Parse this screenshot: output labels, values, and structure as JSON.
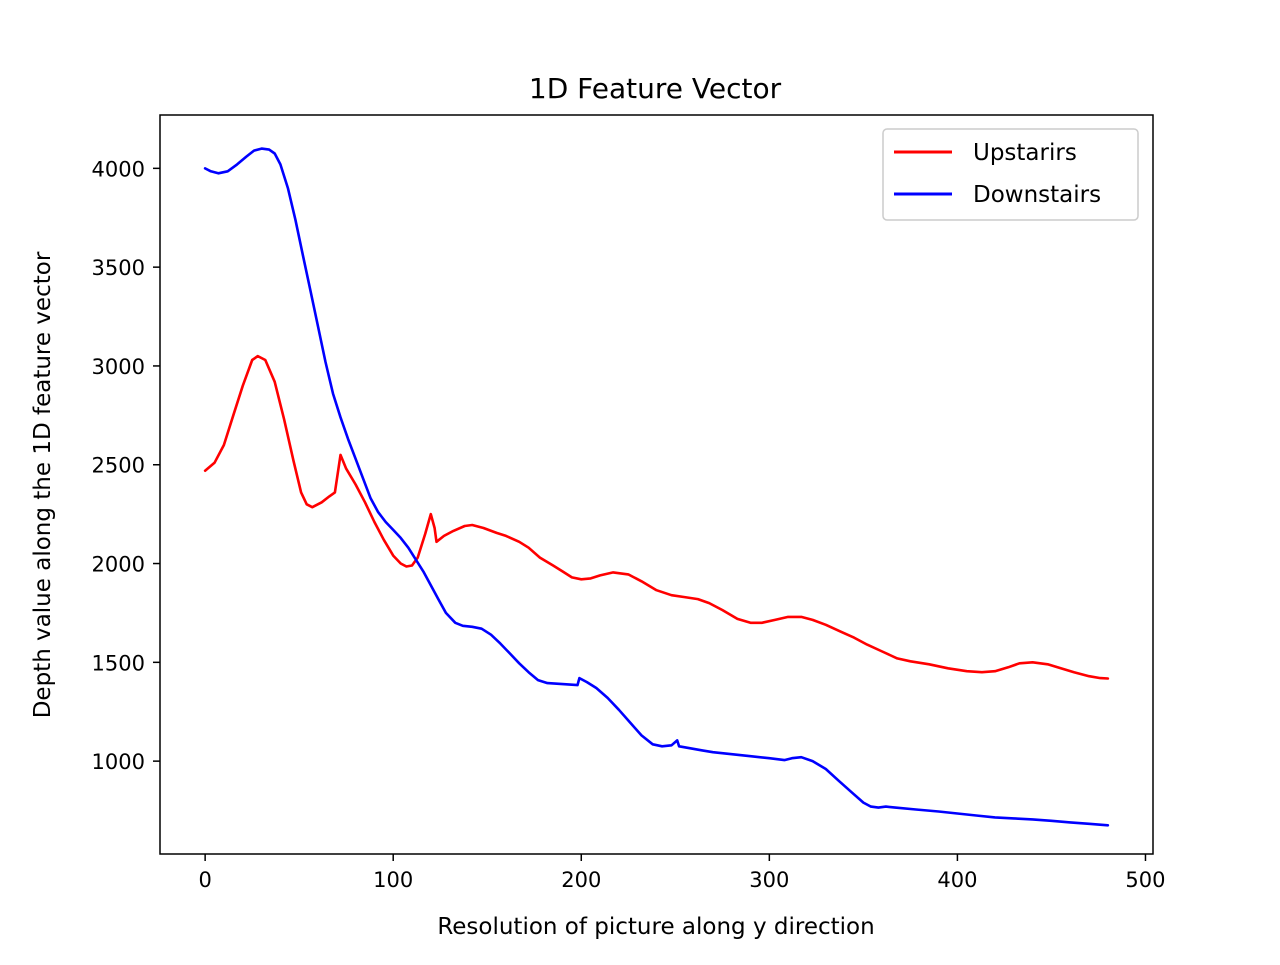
{
  "chart_data": {
    "type": "line",
    "title": "1D Feature Vector",
    "xlabel": "Resolution of picture along y direction",
    "ylabel": "Depth value along the 1D feature vector",
    "xlim": [
      -24,
      504
    ],
    "ylim": [
      530,
      4270
    ],
    "xticks": [
      0,
      100,
      200,
      300,
      400,
      500
    ],
    "yticks": [
      1000,
      1500,
      2000,
      2500,
      3000,
      3500,
      4000
    ],
    "grid": false,
    "legend_position": "top-right",
    "series": [
      {
        "name": "Upstarirs",
        "color": "#ff0000",
        "points": [
          [
            0,
            2470
          ],
          [
            5,
            2510
          ],
          [
            10,
            2600
          ],
          [
            15,
            2750
          ],
          [
            20,
            2900
          ],
          [
            25,
            3030
          ],
          [
            28,
            3050
          ],
          [
            32,
            3030
          ],
          [
            37,
            2920
          ],
          [
            42,
            2730
          ],
          [
            47,
            2520
          ],
          [
            51,
            2360
          ],
          [
            54,
            2300
          ],
          [
            57,
            2285
          ],
          [
            62,
            2310
          ],
          [
            66,
            2340
          ],
          [
            69,
            2360
          ],
          [
            72,
            2550
          ],
          [
            75,
            2480
          ],
          [
            80,
            2400
          ],
          [
            85,
            2310
          ],
          [
            90,
            2210
          ],
          [
            95,
            2120
          ],
          [
            100,
            2040
          ],
          [
            104,
            2000
          ],
          [
            107,
            1985
          ],
          [
            110,
            1990
          ],
          [
            113,
            2030
          ],
          [
            117,
            2150
          ],
          [
            120,
            2250
          ],
          [
            122,
            2180
          ],
          [
            123,
            2110
          ],
          [
            127,
            2140
          ],
          [
            132,
            2165
          ],
          [
            138,
            2190
          ],
          [
            142,
            2195
          ],
          [
            148,
            2180
          ],
          [
            155,
            2155
          ],
          [
            160,
            2140
          ],
          [
            167,
            2110
          ],
          [
            172,
            2080
          ],
          [
            178,
            2030
          ],
          [
            185,
            1990
          ],
          [
            190,
            1960
          ],
          [
            195,
            1930
          ],
          [
            200,
            1920
          ],
          [
            205,
            1925
          ],
          [
            210,
            1940
          ],
          [
            217,
            1955
          ],
          [
            225,
            1945
          ],
          [
            232,
            1910
          ],
          [
            240,
            1865
          ],
          [
            248,
            1840
          ],
          [
            255,
            1830
          ],
          [
            262,
            1820
          ],
          [
            268,
            1800
          ],
          [
            275,
            1765
          ],
          [
            283,
            1720
          ],
          [
            290,
            1700
          ],
          [
            296,
            1700
          ],
          [
            303,
            1715
          ],
          [
            310,
            1730
          ],
          [
            317,
            1730
          ],
          [
            323,
            1715
          ],
          [
            330,
            1690
          ],
          [
            338,
            1655
          ],
          [
            345,
            1625
          ],
          [
            352,
            1590
          ],
          [
            360,
            1555
          ],
          [
            368,
            1520
          ],
          [
            375,
            1505
          ],
          [
            385,
            1490
          ],
          [
            395,
            1470
          ],
          [
            405,
            1455
          ],
          [
            413,
            1450
          ],
          [
            420,
            1455
          ],
          [
            427,
            1475
          ],
          [
            433,
            1495
          ],
          [
            440,
            1500
          ],
          [
            448,
            1490
          ],
          [
            455,
            1470
          ],
          [
            462,
            1450
          ],
          [
            470,
            1430
          ],
          [
            476,
            1420
          ],
          [
            480,
            1418
          ]
        ]
      },
      {
        "name": "Downstairs",
        "color": "#0000ff",
        "points": [
          [
            0,
            4000
          ],
          [
            3,
            3985
          ],
          [
            7,
            3975
          ],
          [
            12,
            3985
          ],
          [
            17,
            4020
          ],
          [
            22,
            4060
          ],
          [
            26,
            4090
          ],
          [
            30,
            4100
          ],
          [
            34,
            4095
          ],
          [
            37,
            4075
          ],
          [
            40,
            4020
          ],
          [
            44,
            3900
          ],
          [
            48,
            3740
          ],
          [
            52,
            3560
          ],
          [
            56,
            3380
          ],
          [
            60,
            3200
          ],
          [
            64,
            3020
          ],
          [
            68,
            2860
          ],
          [
            72,
            2740
          ],
          [
            76,
            2630
          ],
          [
            80,
            2530
          ],
          [
            84,
            2430
          ],
          [
            88,
            2330
          ],
          [
            92,
            2260
          ],
          [
            96,
            2210
          ],
          [
            100,
            2170
          ],
          [
            104,
            2130
          ],
          [
            108,
            2080
          ],
          [
            112,
            2020
          ],
          [
            116,
            1960
          ],
          [
            120,
            1890
          ],
          [
            124,
            1820
          ],
          [
            128,
            1750
          ],
          [
            133,
            1700
          ],
          [
            137,
            1685
          ],
          [
            142,
            1680
          ],
          [
            147,
            1670
          ],
          [
            152,
            1640
          ],
          [
            157,
            1595
          ],
          [
            162,
            1545
          ],
          [
            167,
            1495
          ],
          [
            172,
            1450
          ],
          [
            177,
            1410
          ],
          [
            182,
            1395
          ],
          [
            190,
            1390
          ],
          [
            198,
            1385
          ],
          [
            199,
            1420
          ],
          [
            203,
            1400
          ],
          [
            208,
            1370
          ],
          [
            214,
            1320
          ],
          [
            220,
            1260
          ],
          [
            226,
            1195
          ],
          [
            232,
            1130
          ],
          [
            238,
            1085
          ],
          [
            243,
            1075
          ],
          [
            248,
            1080
          ],
          [
            251,
            1105
          ],
          [
            252,
            1075
          ],
          [
            258,
            1065
          ],
          [
            264,
            1055
          ],
          [
            270,
            1045
          ],
          [
            280,
            1035
          ],
          [
            290,
            1025
          ],
          [
            300,
            1015
          ],
          [
            308,
            1005
          ],
          [
            312,
            1015
          ],
          [
            317,
            1020
          ],
          [
            323,
            1000
          ],
          [
            330,
            960
          ],
          [
            337,
            900
          ],
          [
            344,
            840
          ],
          [
            350,
            790
          ],
          [
            354,
            770
          ],
          [
            358,
            765
          ],
          [
            362,
            770
          ],
          [
            367,
            765
          ],
          [
            378,
            755
          ],
          [
            390,
            745
          ],
          [
            400,
            735
          ],
          [
            410,
            725
          ],
          [
            420,
            715
          ],
          [
            430,
            710
          ],
          [
            440,
            705
          ],
          [
            450,
            698
          ],
          [
            460,
            690
          ],
          [
            470,
            683
          ],
          [
            480,
            675
          ]
        ]
      }
    ]
  }
}
